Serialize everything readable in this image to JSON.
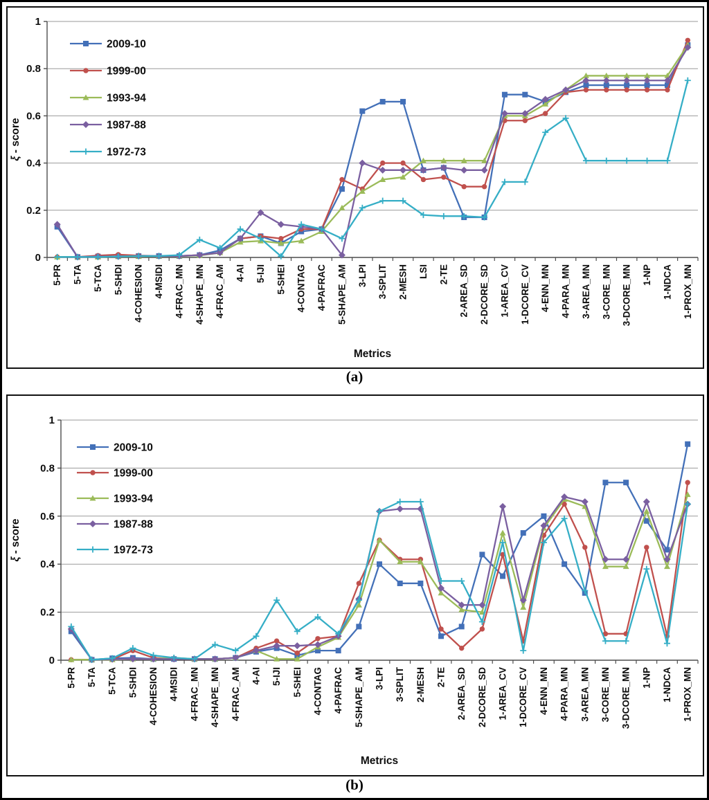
{
  "captions": {
    "a": "(a)",
    "b": "(b)"
  },
  "axis": {
    "xlabel": "Metrics",
    "ylabel": "ξ - score",
    "ytick_labels": [
      "0",
      "0.2",
      "0.4",
      "0.6",
      "0.8",
      "1"
    ]
  },
  "colors": {
    "series_2009_10": "#4370B8",
    "series_1999_00": "#C0504D",
    "series_1993_94": "#9BBB59",
    "series_1987_88": "#7A5FA0",
    "series_1972_73": "#35AEC6",
    "gridline": "#9A9A9A",
    "axis_line": "#4d4d4d"
  },
  "chart_data": [
    {
      "type": "line",
      "panel": "a",
      "xlabel": "Metrics",
      "ylabel": "ξ - score",
      "ylim": [
        0,
        1
      ],
      "yticks": [
        0,
        0.2,
        0.4,
        0.6,
        0.8,
        1
      ],
      "grid": true,
      "legend_position": "upper-left",
      "categories": [
        "5-PR",
        "5-TA",
        "5-TCA",
        "5-SHDI",
        "4-COHESION",
        "4-MSIDI",
        "4-FRAC_MN",
        "4-SHAPE_MN",
        "4-FRAC_AM",
        "4-AI",
        "5-IJI",
        "5-SHEI",
        "4-CONTAG",
        "4-PAFRAC",
        "5-SHAPE_AM",
        "3-LPI",
        "3-SPLIT",
        "2-MESH",
        "LSI",
        "2-TE",
        "2-AREA_SD",
        "2-DCORE_SD",
        "1-AREA_CV",
        "1-DCORE_CV",
        "4-ENN_MN",
        "4-PARA_MN",
        "3-AREA_MN",
        "3-CORE_MN",
        "3-DCORE_MN",
        "1-NP",
        "1-NDCA",
        "1-PROX_MN"
      ],
      "series": [
        {
          "name": "2009-10",
          "color_key": "series_2009_10",
          "marker": "square",
          "values": [
            0.13,
            0.002,
            0.004,
            0.005,
            0.006,
            0.006,
            0.006,
            0.01,
            0.03,
            0.08,
            0.09,
            0.06,
            0.11,
            0.12,
            0.29,
            0.62,
            0.66,
            0.66,
            0.37,
            0.38,
            0.17,
            0.17,
            0.69,
            0.69,
            0.66,
            0.7,
            0.73,
            0.73,
            0.73,
            0.73,
            0.73,
            0.9
          ]
        },
        {
          "name": "1999-00",
          "color_key": "series_1999_00",
          "marker": "circle",
          "values": [
            0.002,
            0.002,
            0.008,
            0.012,
            0.008,
            0.006,
            0.006,
            0.01,
            0.02,
            0.08,
            0.09,
            0.08,
            0.12,
            0.12,
            0.33,
            0.29,
            0.4,
            0.4,
            0.33,
            0.34,
            0.3,
            0.3,
            0.58,
            0.58,
            0.61,
            0.7,
            0.71,
            0.71,
            0.71,
            0.71,
            0.71,
            0.92
          ]
        },
        {
          "name": "1993-94",
          "color_key": "series_1993_94",
          "marker": "triangle",
          "values": [
            0.002,
            0.002,
            0.002,
            0.004,
            0.004,
            0.006,
            0.006,
            0.008,
            0.02,
            0.065,
            0.07,
            0.06,
            0.07,
            0.11,
            0.21,
            0.28,
            0.33,
            0.34,
            0.41,
            0.41,
            0.41,
            0.41,
            0.6,
            0.6,
            0.65,
            0.71,
            0.77,
            0.77,
            0.77,
            0.77,
            0.77,
            0.9
          ]
        },
        {
          "name": "1987-88",
          "color_key": "series_1987_88",
          "marker": "diamond",
          "values": [
            0.14,
            0.002,
            0.004,
            0.004,
            0.006,
            0.006,
            0.006,
            0.01,
            0.02,
            0.08,
            0.19,
            0.14,
            0.13,
            0.12,
            0.01,
            0.4,
            0.37,
            0.37,
            0.37,
            0.38,
            0.37,
            0.37,
            0.61,
            0.61,
            0.67,
            0.71,
            0.75,
            0.75,
            0.75,
            0.75,
            0.75,
            0.89
          ]
        },
        {
          "name": "1972-73",
          "color_key": "series_1972_73",
          "marker": "plus",
          "values": [
            0.002,
            0.002,
            0.002,
            0.004,
            0.006,
            0.006,
            0.01,
            0.075,
            0.04,
            0.12,
            0.08,
            0.005,
            0.14,
            0.12,
            0.08,
            0.21,
            0.24,
            0.24,
            0.18,
            0.175,
            0.175,
            0.17,
            0.32,
            0.32,
            0.53,
            0.59,
            0.41,
            0.41,
            0.41,
            0.41,
            0.41,
            0.75
          ]
        }
      ]
    },
    {
      "type": "line",
      "panel": "b",
      "xlabel": "Metrics",
      "ylabel": "ξ - score",
      "ylim": [
        0,
        1
      ],
      "yticks": [
        0,
        0.2,
        0.4,
        0.6,
        0.8,
        1
      ],
      "grid": true,
      "legend_position": "upper-left",
      "categories": [
        "5-PR",
        "5-TA",
        "5-TCA",
        "5-SHDI",
        "4-COHESION",
        "4-MSIDI",
        "4-FRAC_MN",
        "4-SHAPE_MN",
        "4-FRAC_AM",
        "4-AI",
        "5-IJI",
        "5-SHEI",
        "4-CONTAG",
        "4-PAFRAC",
        "5-SHAPE_AM",
        "3-LPI",
        "3-SPLIT",
        "2-MESH",
        "2-TE",
        "2-AREA_SD",
        "2-DCORE_SD",
        "1-AREA_CV",
        "1-DCORE_CV",
        "4-ENN_MN",
        "4-PARA_MN",
        "3-AREA_MN",
        "3-CORE_MN",
        "3-DCORE_MN",
        "1-NP",
        "1-NDCA",
        "1-PROX_MN"
      ],
      "series": [
        {
          "name": "2009-10",
          "color_key": "series_2009_10",
          "marker": "square",
          "values": [
            0.12,
            0.002,
            0.008,
            0.01,
            0.005,
            0.005,
            0.005,
            0.005,
            0.01,
            0.035,
            0.05,
            0.02,
            0.04,
            0.04,
            0.14,
            0.4,
            0.32,
            0.32,
            0.1,
            0.14,
            0.44,
            0.35,
            0.53,
            0.6,
            0.4,
            0.28,
            0.74,
            0.74,
            0.58,
            0.46,
            0.9
          ]
        },
        {
          "name": "1999-00",
          "color_key": "series_1999_00",
          "marker": "circle",
          "values": [
            0.002,
            0.002,
            0.004,
            0.04,
            0.01,
            0.005,
            0.005,
            0.005,
            0.01,
            0.05,
            0.08,
            0.03,
            0.09,
            0.1,
            0.32,
            0.5,
            0.42,
            0.42,
            0.13,
            0.05,
            0.13,
            0.44,
            0.08,
            0.52,
            0.65,
            0.47,
            0.11,
            0.11,
            0.47,
            0.1,
            0.74
          ]
        },
        {
          "name": "1993-94",
          "color_key": "series_1993_94",
          "marker": "triangle",
          "values": [
            0.002,
            0.002,
            0.002,
            0.005,
            0.005,
            0.01,
            0.005,
            0.005,
            0.01,
            0.04,
            0.005,
            0.005,
            0.055,
            0.095,
            0.23,
            0.5,
            0.41,
            0.41,
            0.28,
            0.21,
            0.2,
            0.53,
            0.22,
            0.55,
            0.67,
            0.64,
            0.39,
            0.39,
            0.62,
            0.39,
            0.69
          ]
        },
        {
          "name": "1987-88",
          "color_key": "series_1987_88",
          "marker": "diamond",
          "values": [
            0.13,
            0.002,
            0.004,
            0.005,
            0.005,
            0.005,
            0.005,
            0.005,
            0.01,
            0.04,
            0.06,
            0.06,
            0.065,
            0.1,
            0.255,
            0.62,
            0.63,
            0.63,
            0.3,
            0.23,
            0.23,
            0.64,
            0.25,
            0.56,
            0.68,
            0.66,
            0.42,
            0.42,
            0.66,
            0.42,
            0.65
          ]
        },
        {
          "name": "1972-73",
          "color_key": "series_1972_73",
          "marker": "plus",
          "values": [
            0.14,
            0.002,
            0.008,
            0.05,
            0.02,
            0.01,
            0.005,
            0.065,
            0.04,
            0.1,
            0.25,
            0.12,
            0.18,
            0.11,
            0.25,
            0.62,
            0.66,
            0.66,
            0.33,
            0.33,
            0.16,
            0.49,
            0.04,
            0.49,
            0.59,
            0.29,
            0.08,
            0.08,
            0.38,
            0.07,
            0.65
          ]
        }
      ]
    }
  ]
}
